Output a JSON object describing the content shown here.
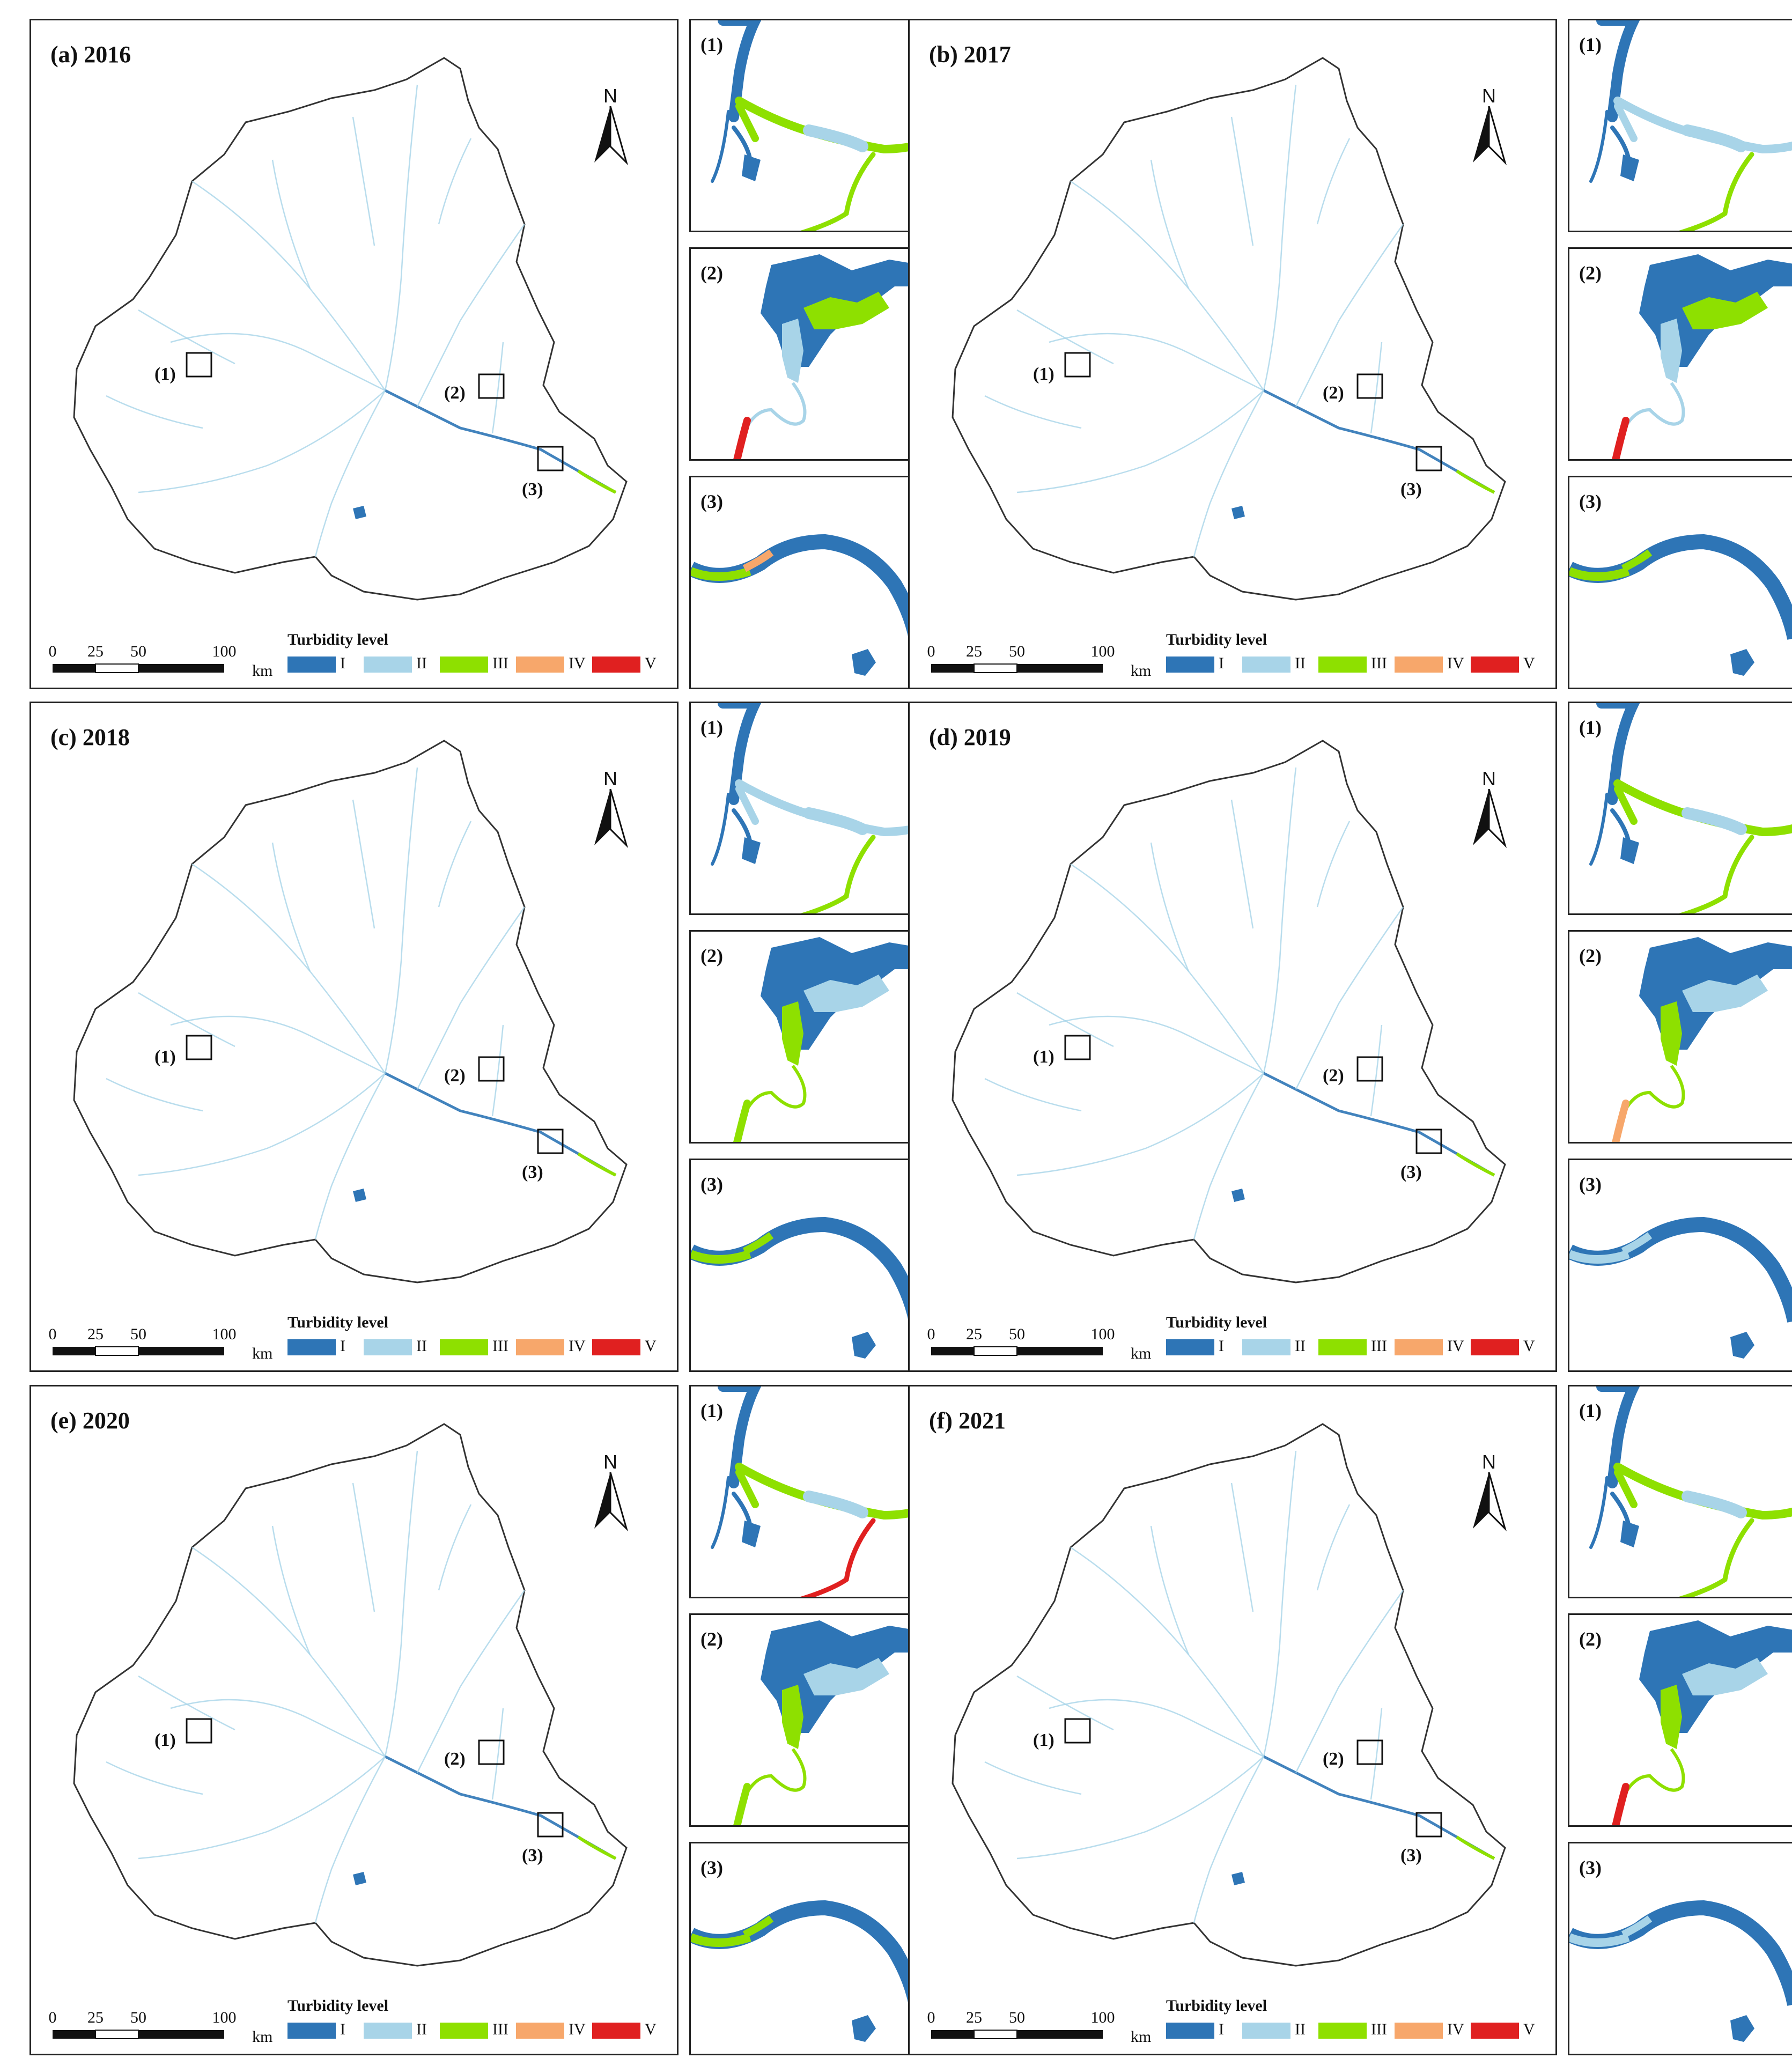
{
  "legend": {
    "title": "Turbidity level",
    "levels": [
      {
        "label": "I",
        "color": "#2e75b6"
      },
      {
        "label": "II",
        "color": "#a8d4e8"
      },
      {
        "label": "III",
        "color": "#8ee000"
      },
      {
        "label": "IV",
        "color": "#f7a76b"
      },
      {
        "label": "V",
        "color": "#e02020"
      }
    ]
  },
  "scale": {
    "ticks": [
      "0",
      "25",
      "50",
      "100"
    ],
    "unit": "km"
  },
  "north_label": "N",
  "box_labels": [
    "(1)",
    "(2)",
    "(3)"
  ],
  "panels": [
    {
      "title": "(a) 2016",
      "insets": [
        [
          "I",
          "III",
          "II",
          "III"
        ],
        [
          "I",
          "III",
          "II",
          "V"
        ],
        [
          "I",
          "III",
          "IV",
          "I"
        ]
      ]
    },
    {
      "title": "(b) 2017",
      "insets": [
        [
          "I",
          "II",
          "II",
          "III"
        ],
        [
          "I",
          "III",
          "II",
          "V"
        ],
        [
          "I",
          "III",
          "III",
          "I"
        ]
      ]
    },
    {
      "title": "(c) 2018",
      "insets": [
        [
          "I",
          "II",
          "II",
          "III"
        ],
        [
          "I",
          "II",
          "III",
          "III"
        ],
        [
          "I",
          "III",
          "III",
          "I"
        ]
      ]
    },
    {
      "title": "(d) 2019",
      "insets": [
        [
          "I",
          "III",
          "II",
          "III"
        ],
        [
          "I",
          "II",
          "III",
          "IV"
        ],
        [
          "I",
          "II",
          "II",
          "I"
        ]
      ]
    },
    {
      "title": "(e) 2020",
      "insets": [
        [
          "I",
          "III",
          "II",
          "V"
        ],
        [
          "I",
          "II",
          "III",
          "III"
        ],
        [
          "I",
          "III",
          "III",
          "I"
        ]
      ]
    },
    {
      "title": "(f) 2021",
      "insets": [
        [
          "I",
          "III",
          "II",
          "III"
        ],
        [
          "I",
          "II",
          "III",
          "V"
        ],
        [
          "I",
          "II",
          "II",
          "I"
        ]
      ]
    }
  ]
}
